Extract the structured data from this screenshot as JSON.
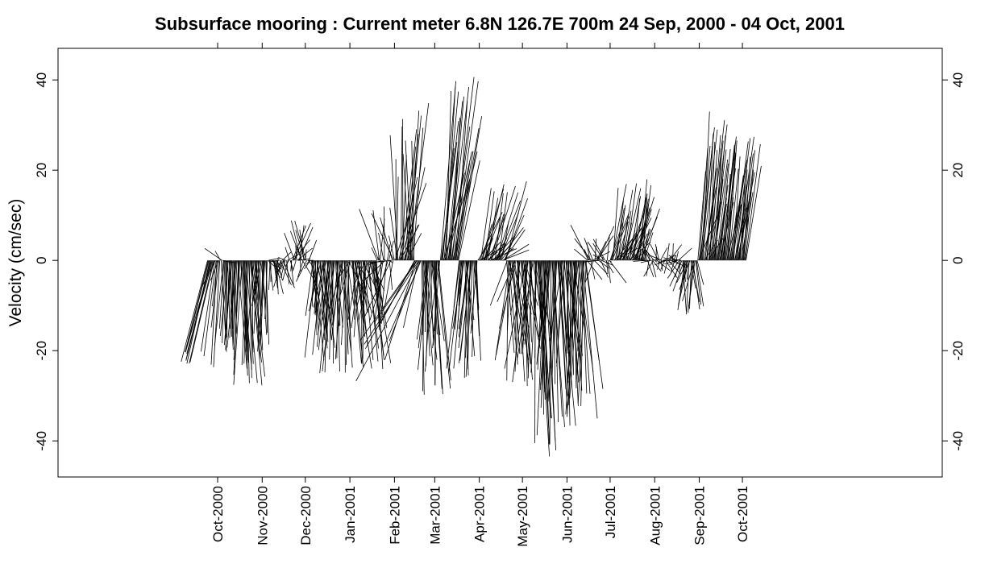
{
  "chart_data": {
    "type": "stick-vector",
    "title": "Subsurface mooring : Current meter  6.8N 126.7E   700m  24 Sep, 2000 - 04 Oct, 2001",
    "xlabel": "",
    "ylabel": "Velocity (cm/sec)",
    "ylim": [
      -48,
      47
    ],
    "xlim": [
      "2000-06-12",
      "2002-02-17"
    ],
    "y_ticks": [
      -40,
      -20,
      0,
      20,
      40
    ],
    "x_ticks": [
      {
        "date": "2000-10-01",
        "label": "Oct-2000"
      },
      {
        "date": "2000-11-01",
        "label": "Nov-2000"
      },
      {
        "date": "2000-12-01",
        "label": "Dec-2000"
      },
      {
        "date": "2001-01-01",
        "label": "Jan-2001"
      },
      {
        "date": "2001-02-01",
        "label": "Feb-2001"
      },
      {
        "date": "2001-03-01",
        "label": "Mar-2001"
      },
      {
        "date": "2001-04-01",
        "label": "Apr-2001"
      },
      {
        "date": "2001-05-01",
        "label": "May-2001"
      },
      {
        "date": "2001-06-01",
        "label": "Jun-2001"
      },
      {
        "date": "2001-07-01",
        "label": "Jul-2001"
      },
      {
        "date": "2001-08-01",
        "label": "Aug-2001"
      },
      {
        "date": "2001-09-01",
        "label": "Sep-2001"
      },
      {
        "date": "2001-10-01",
        "label": "Oct-2001"
      }
    ],
    "right_axis_duplicate": true,
    "grid": false,
    "line_color": "#000000",
    "data_range": [
      "2000-09-24",
      "2001-10-04"
    ],
    "series": [
      {
        "start": "2000-09-24",
        "end": "2001-10-04",
        "segments": [
          {
            "from": "2000-09-24",
            "to": "2000-09-29",
            "u": [
              -6,
              -5
            ],
            "v": [
              -18,
              -23
            ]
          },
          {
            "from": "2000-09-29",
            "to": "2000-10-05",
            "u": [
              -4,
              3
            ],
            "v": [
              -24,
              3
            ]
          },
          {
            "from": "2000-10-05",
            "to": "2000-10-15",
            "u": [
              -2,
              1
            ],
            "v": [
              -15,
              -20
            ]
          },
          {
            "from": "2000-10-15",
            "to": "2000-10-25",
            "u": [
              -2,
              3
            ],
            "v": [
              -28,
              -20
            ]
          },
          {
            "from": "2000-10-25",
            "to": "2000-11-05",
            "u": [
              -2,
              2
            ],
            "v": [
              -22,
              -6
            ]
          },
          {
            "from": "2000-11-05",
            "to": "2000-11-20",
            "u": [
              -2,
              3
            ],
            "v": [
              -8,
              2
            ]
          },
          {
            "from": "2000-11-20",
            "to": "2000-12-05",
            "u": [
              -3,
              4
            ],
            "v": [
              -6,
              9
            ]
          },
          {
            "from": "2000-12-05",
            "to": "2000-12-31",
            "u": [
              -3,
              3
            ],
            "v": [
              -25,
              -10
            ]
          },
          {
            "from": "2000-12-31",
            "to": "2001-01-20",
            "u": [
              -3,
              4
            ],
            "v": [
              -25,
              -4
            ]
          },
          {
            "from": "2001-01-20",
            "to": "2001-02-01",
            "u": [
              -6,
              2
            ],
            "v": [
              -15,
              12
            ]
          },
          {
            "from": "2001-02-01",
            "to": "2001-02-15",
            "u": [
              -2,
              6
            ],
            "v": [
              5,
              35
            ]
          },
          {
            "from": "2001-02-15",
            "to": "2001-02-20",
            "u": [
              -16,
              -2
            ],
            "v": [
              -30,
              -12
            ]
          },
          {
            "from": "2001-02-20",
            "to": "2001-03-05",
            "u": [
              -3,
              3
            ],
            "v": [
              -30,
              -15
            ]
          },
          {
            "from": "2001-03-05",
            "to": "2001-03-18",
            "u": [
              1,
              6
            ],
            "v": [
              15,
              41
            ]
          },
          {
            "from": "2001-03-18",
            "to": "2001-03-31",
            "u": [
              -3,
              2
            ],
            "v": [
              -28,
              -10
            ]
          },
          {
            "from": "2001-03-31",
            "to": "2001-04-20",
            "u": [
              1,
              6
            ],
            "v": [
              1,
              18
            ]
          },
          {
            "from": "2001-04-20",
            "to": "2001-05-10",
            "u": [
              -5,
              4
            ],
            "v": [
              -28,
              -8
            ]
          },
          {
            "from": "2001-05-10",
            "to": "2001-05-25",
            "u": [
              -3,
              3
            ],
            "v": [
              -44,
              -20
            ]
          },
          {
            "from": "2001-05-25",
            "to": "2001-06-15",
            "u": [
              -3,
              4
            ],
            "v": [
              -38,
              -15
            ]
          },
          {
            "from": "2001-06-15",
            "to": "2001-07-01",
            "u": [
              -4,
              4
            ],
            "v": [
              -5,
              8
            ]
          },
          {
            "from": "2001-07-01",
            "to": "2001-07-25",
            "u": [
              1,
              5
            ],
            "v": [
              2,
              18
            ]
          },
          {
            "from": "2001-07-25",
            "to": "2001-08-20",
            "u": [
              -3,
              3
            ],
            "v": [
              -4,
              4
            ]
          },
          {
            "from": "2001-08-20",
            "to": "2001-08-31",
            "u": [
              -3,
              2
            ],
            "v": [
              -12,
              -3
            ]
          },
          {
            "from": "2001-08-31",
            "to": "2001-09-10",
            "u": [
              1,
              4
            ],
            "v": [
              2,
              33
            ]
          },
          {
            "from": "2001-09-10",
            "to": "2001-10-04",
            "u": [
              1,
              4
            ],
            "v": [
              10,
              28
            ]
          }
        ]
      }
    ]
  }
}
